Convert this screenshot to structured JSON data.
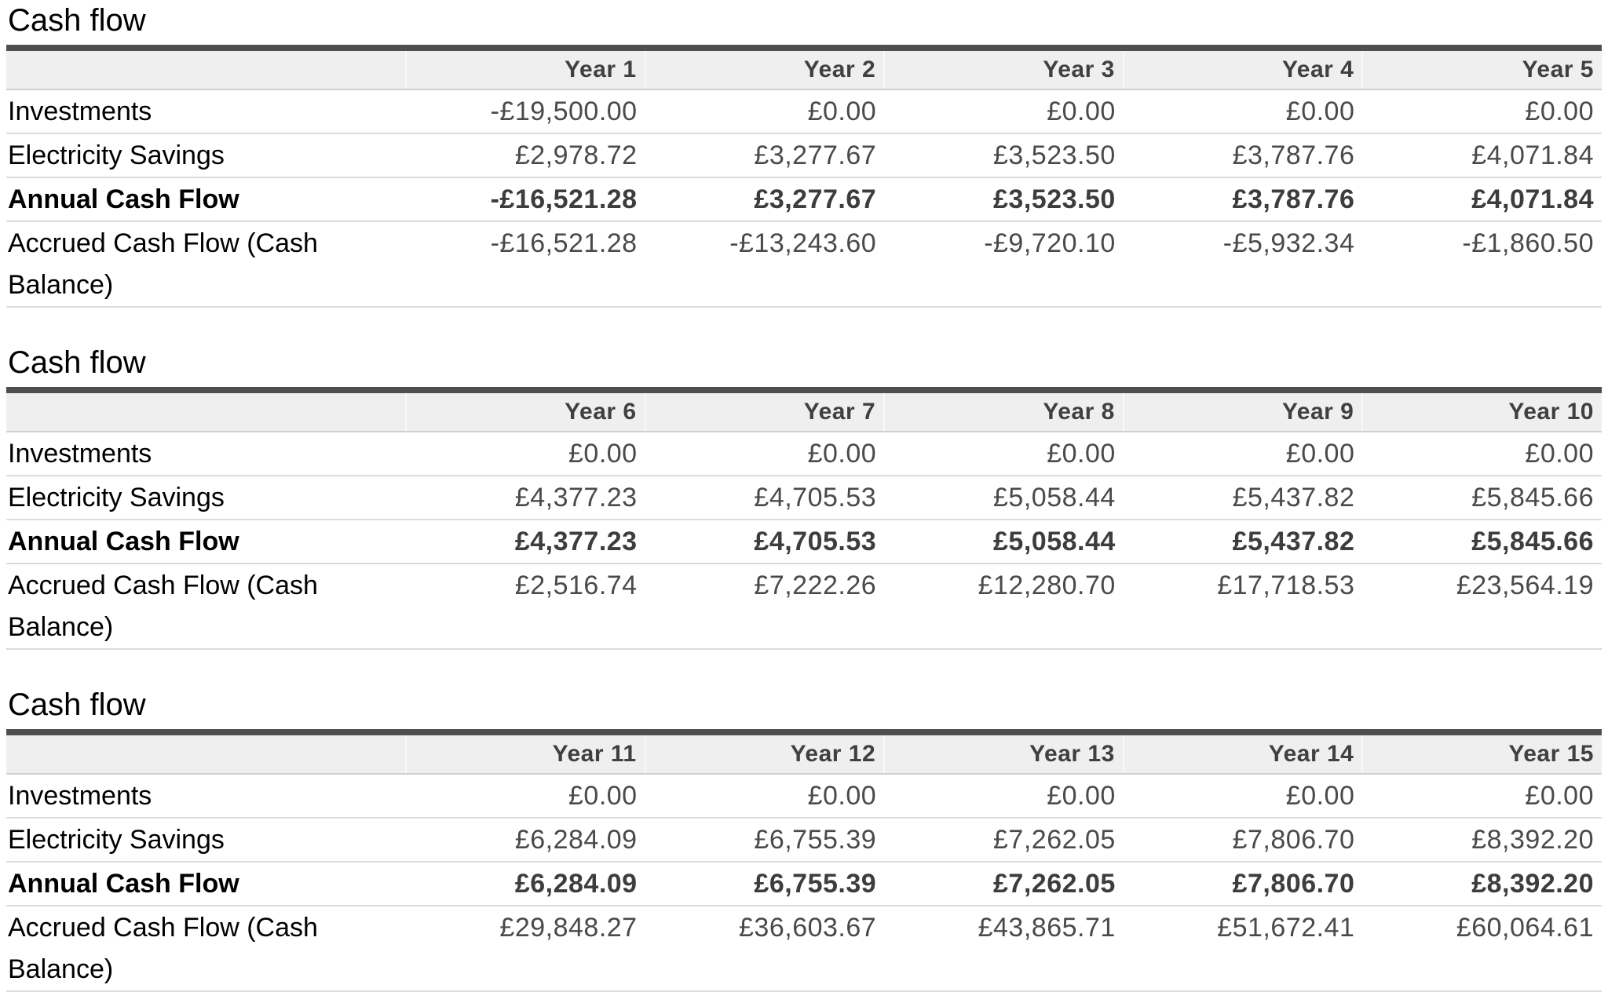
{
  "colors": {
    "top_border": "#4f4f4f",
    "header_background": "#efefef",
    "header_text": "#404040",
    "label_text": "#000000",
    "value_text": "#4a4a4a",
    "row_line": "#dcdcdc"
  },
  "tables": [
    {
      "title": "Cash flow",
      "columns": [
        "Year 1",
        "Year 2",
        "Year 3",
        "Year 4",
        "Year 5"
      ],
      "rows": [
        {
          "label": "Investments",
          "bold": false,
          "values": [
            "-£19,500.00",
            "£0.00",
            "£0.00",
            "£0.00",
            "£0.00"
          ]
        },
        {
          "label": "Electricity Savings",
          "bold": false,
          "values": [
            "£2,978.72",
            "£3,277.67",
            "£3,523.50",
            "£3,787.76",
            "£4,071.84"
          ]
        },
        {
          "label": "Annual Cash Flow",
          "bold": true,
          "values": [
            "-£16,521.28",
            "£3,277.67",
            "£3,523.50",
            "£3,787.76",
            "£4,071.84"
          ]
        },
        {
          "label": "Accrued Cash Flow (Cash Balance)",
          "bold": false,
          "values": [
            "-£16,521.28",
            "-£13,243.60",
            "-£9,720.10",
            "-£5,932.34",
            "-£1,860.50"
          ]
        }
      ]
    },
    {
      "title": "Cash flow",
      "columns": [
        "Year 6",
        "Year 7",
        "Year 8",
        "Year 9",
        "Year 10"
      ],
      "rows": [
        {
          "label": "Investments",
          "bold": false,
          "values": [
            "£0.00",
            "£0.00",
            "£0.00",
            "£0.00",
            "£0.00"
          ]
        },
        {
          "label": "Electricity Savings",
          "bold": false,
          "values": [
            "£4,377.23",
            "£4,705.53",
            "£5,058.44",
            "£5,437.82",
            "£5,845.66"
          ]
        },
        {
          "label": "Annual Cash Flow",
          "bold": true,
          "values": [
            "£4,377.23",
            "£4,705.53",
            "£5,058.44",
            "£5,437.82",
            "£5,845.66"
          ]
        },
        {
          "label": "Accrued Cash Flow (Cash Balance)",
          "bold": false,
          "values": [
            "£2,516.74",
            "£7,222.26",
            "£12,280.70",
            "£17,718.53",
            "£23,564.19"
          ]
        }
      ]
    },
    {
      "title": "Cash flow",
      "columns": [
        "Year 11",
        "Year 12",
        "Year 13",
        "Year 14",
        "Year 15"
      ],
      "rows": [
        {
          "label": "Investments",
          "bold": false,
          "values": [
            "£0.00",
            "£0.00",
            "£0.00",
            "£0.00",
            "£0.00"
          ]
        },
        {
          "label": "Electricity Savings",
          "bold": false,
          "values": [
            "£6,284.09",
            "£6,755.39",
            "£7,262.05",
            "£7,806.70",
            "£8,392.20"
          ]
        },
        {
          "label": "Annual Cash Flow",
          "bold": true,
          "values": [
            "£6,284.09",
            "£6,755.39",
            "£7,262.05",
            "£7,806.70",
            "£8,392.20"
          ]
        },
        {
          "label": "Accrued Cash Flow (Cash Balance)",
          "bold": false,
          "values": [
            "£29,848.27",
            "£36,603.67",
            "£43,865.71",
            "£51,672.41",
            "£60,064.61"
          ]
        }
      ]
    }
  ]
}
